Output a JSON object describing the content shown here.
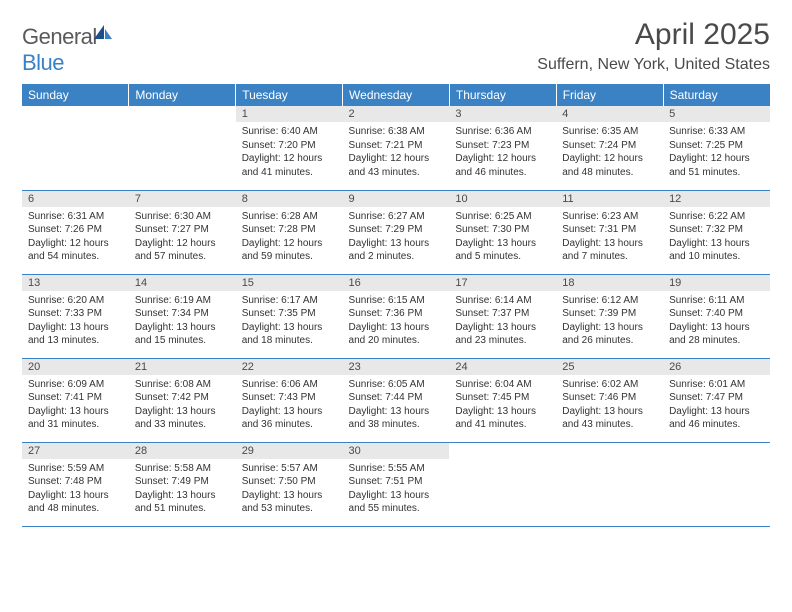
{
  "logo": {
    "general": "General",
    "blue": "Blue"
  },
  "title": "April 2025",
  "location": "Suffern, New York, United States",
  "colors": {
    "header_bg": "#3b82c4",
    "header_text": "#ffffff",
    "daynum_bg": "#e8e8e8",
    "row_divider": "#3b82c4",
    "logo_gray": "#5a5a5a",
    "logo_blue": "#3b82c4",
    "body_text": "#333333",
    "title_text": "#4a4a4a"
  },
  "weekdays": [
    "Sunday",
    "Monday",
    "Tuesday",
    "Wednesday",
    "Thursday",
    "Friday",
    "Saturday"
  ],
  "grid": [
    [
      null,
      null,
      {
        "n": "1",
        "sr": "Sunrise: 6:40 AM",
        "ss": "Sunset: 7:20 PM",
        "d1": "Daylight: 12 hours",
        "d2": "and 41 minutes."
      },
      {
        "n": "2",
        "sr": "Sunrise: 6:38 AM",
        "ss": "Sunset: 7:21 PM",
        "d1": "Daylight: 12 hours",
        "d2": "and 43 minutes."
      },
      {
        "n": "3",
        "sr": "Sunrise: 6:36 AM",
        "ss": "Sunset: 7:23 PM",
        "d1": "Daylight: 12 hours",
        "d2": "and 46 minutes."
      },
      {
        "n": "4",
        "sr": "Sunrise: 6:35 AM",
        "ss": "Sunset: 7:24 PM",
        "d1": "Daylight: 12 hours",
        "d2": "and 48 minutes."
      },
      {
        "n": "5",
        "sr": "Sunrise: 6:33 AM",
        "ss": "Sunset: 7:25 PM",
        "d1": "Daylight: 12 hours",
        "d2": "and 51 minutes."
      }
    ],
    [
      {
        "n": "6",
        "sr": "Sunrise: 6:31 AM",
        "ss": "Sunset: 7:26 PM",
        "d1": "Daylight: 12 hours",
        "d2": "and 54 minutes."
      },
      {
        "n": "7",
        "sr": "Sunrise: 6:30 AM",
        "ss": "Sunset: 7:27 PM",
        "d1": "Daylight: 12 hours",
        "d2": "and 57 minutes."
      },
      {
        "n": "8",
        "sr": "Sunrise: 6:28 AM",
        "ss": "Sunset: 7:28 PM",
        "d1": "Daylight: 12 hours",
        "d2": "and 59 minutes."
      },
      {
        "n": "9",
        "sr": "Sunrise: 6:27 AM",
        "ss": "Sunset: 7:29 PM",
        "d1": "Daylight: 13 hours",
        "d2": "and 2 minutes."
      },
      {
        "n": "10",
        "sr": "Sunrise: 6:25 AM",
        "ss": "Sunset: 7:30 PM",
        "d1": "Daylight: 13 hours",
        "d2": "and 5 minutes."
      },
      {
        "n": "11",
        "sr": "Sunrise: 6:23 AM",
        "ss": "Sunset: 7:31 PM",
        "d1": "Daylight: 13 hours",
        "d2": "and 7 minutes."
      },
      {
        "n": "12",
        "sr": "Sunrise: 6:22 AM",
        "ss": "Sunset: 7:32 PM",
        "d1": "Daylight: 13 hours",
        "d2": "and 10 minutes."
      }
    ],
    [
      {
        "n": "13",
        "sr": "Sunrise: 6:20 AM",
        "ss": "Sunset: 7:33 PM",
        "d1": "Daylight: 13 hours",
        "d2": "and 13 minutes."
      },
      {
        "n": "14",
        "sr": "Sunrise: 6:19 AM",
        "ss": "Sunset: 7:34 PM",
        "d1": "Daylight: 13 hours",
        "d2": "and 15 minutes."
      },
      {
        "n": "15",
        "sr": "Sunrise: 6:17 AM",
        "ss": "Sunset: 7:35 PM",
        "d1": "Daylight: 13 hours",
        "d2": "and 18 minutes."
      },
      {
        "n": "16",
        "sr": "Sunrise: 6:15 AM",
        "ss": "Sunset: 7:36 PM",
        "d1": "Daylight: 13 hours",
        "d2": "and 20 minutes."
      },
      {
        "n": "17",
        "sr": "Sunrise: 6:14 AM",
        "ss": "Sunset: 7:37 PM",
        "d1": "Daylight: 13 hours",
        "d2": "and 23 minutes."
      },
      {
        "n": "18",
        "sr": "Sunrise: 6:12 AM",
        "ss": "Sunset: 7:39 PM",
        "d1": "Daylight: 13 hours",
        "d2": "and 26 minutes."
      },
      {
        "n": "19",
        "sr": "Sunrise: 6:11 AM",
        "ss": "Sunset: 7:40 PM",
        "d1": "Daylight: 13 hours",
        "d2": "and 28 minutes."
      }
    ],
    [
      {
        "n": "20",
        "sr": "Sunrise: 6:09 AM",
        "ss": "Sunset: 7:41 PM",
        "d1": "Daylight: 13 hours",
        "d2": "and 31 minutes."
      },
      {
        "n": "21",
        "sr": "Sunrise: 6:08 AM",
        "ss": "Sunset: 7:42 PM",
        "d1": "Daylight: 13 hours",
        "d2": "and 33 minutes."
      },
      {
        "n": "22",
        "sr": "Sunrise: 6:06 AM",
        "ss": "Sunset: 7:43 PM",
        "d1": "Daylight: 13 hours",
        "d2": "and 36 minutes."
      },
      {
        "n": "23",
        "sr": "Sunrise: 6:05 AM",
        "ss": "Sunset: 7:44 PM",
        "d1": "Daylight: 13 hours",
        "d2": "and 38 minutes."
      },
      {
        "n": "24",
        "sr": "Sunrise: 6:04 AM",
        "ss": "Sunset: 7:45 PM",
        "d1": "Daylight: 13 hours",
        "d2": "and 41 minutes."
      },
      {
        "n": "25",
        "sr": "Sunrise: 6:02 AM",
        "ss": "Sunset: 7:46 PM",
        "d1": "Daylight: 13 hours",
        "d2": "and 43 minutes."
      },
      {
        "n": "26",
        "sr": "Sunrise: 6:01 AM",
        "ss": "Sunset: 7:47 PM",
        "d1": "Daylight: 13 hours",
        "d2": "and 46 minutes."
      }
    ],
    [
      {
        "n": "27",
        "sr": "Sunrise: 5:59 AM",
        "ss": "Sunset: 7:48 PM",
        "d1": "Daylight: 13 hours",
        "d2": "and 48 minutes."
      },
      {
        "n": "28",
        "sr": "Sunrise: 5:58 AM",
        "ss": "Sunset: 7:49 PM",
        "d1": "Daylight: 13 hours",
        "d2": "and 51 minutes."
      },
      {
        "n": "29",
        "sr": "Sunrise: 5:57 AM",
        "ss": "Sunset: 7:50 PM",
        "d1": "Daylight: 13 hours",
        "d2": "and 53 minutes."
      },
      {
        "n": "30",
        "sr": "Sunrise: 5:55 AM",
        "ss": "Sunset: 7:51 PM",
        "d1": "Daylight: 13 hours",
        "d2": "and 55 minutes."
      },
      null,
      null,
      null
    ]
  ]
}
